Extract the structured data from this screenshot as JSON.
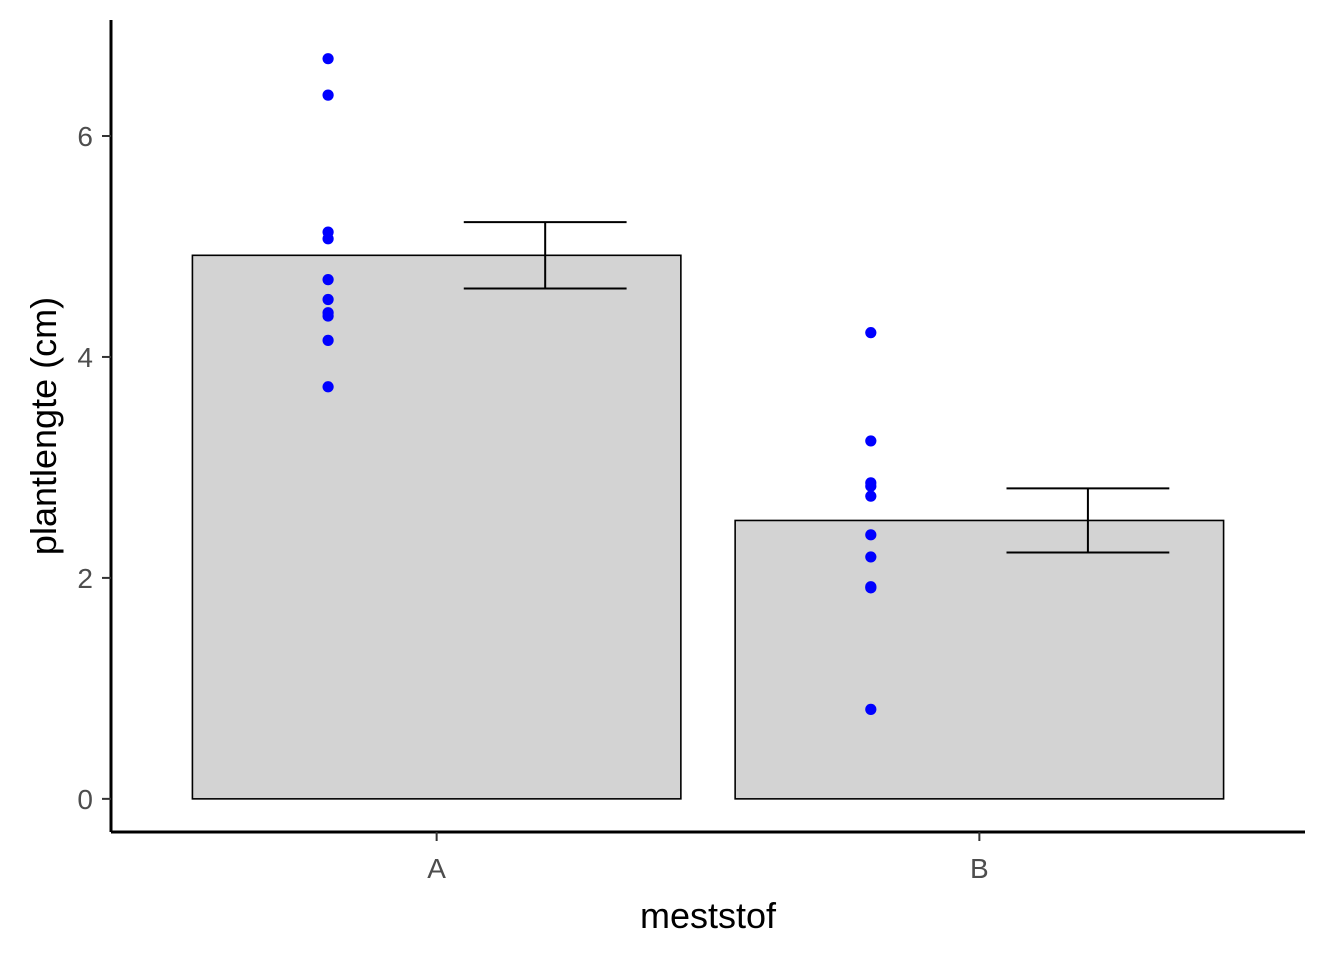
{
  "chart_data": {
    "type": "bar",
    "xlabel": "meststof",
    "ylabel": "plantlengte (cm)",
    "categories": [
      "A",
      "B"
    ],
    "values": [
      4.92,
      2.52
    ],
    "error_bars": [
      {
        "category": "A",
        "lower": 4.62,
        "upper": 5.22
      },
      {
        "category": "B",
        "lower": 2.23,
        "upper": 2.81
      }
    ],
    "points": [
      {
        "category": "A",
        "values": [
          6.7,
          6.37,
          5.13,
          5.07,
          4.7,
          4.52,
          4.4,
          4.37,
          4.15,
          3.73
        ]
      },
      {
        "category": "B",
        "values": [
          4.22,
          3.24,
          2.86,
          2.83,
          2.74,
          2.39,
          2.19,
          1.92,
          1.91,
          0.81
        ]
      }
    ],
    "y_ticks": [
      0,
      2,
      4,
      6
    ],
    "ylim": [
      -0.3,
      7.05
    ],
    "grid": false,
    "legend": "none",
    "colors": {
      "bar_fill": "#d3d3d3",
      "bar_stroke": "#000000",
      "points": "#0000ff",
      "axis": "#000000",
      "tick_text": "#4d4d4d"
    }
  }
}
